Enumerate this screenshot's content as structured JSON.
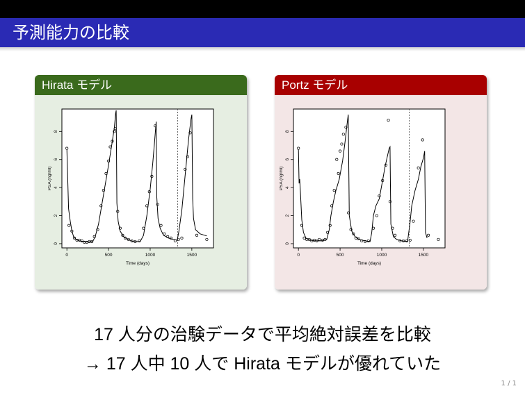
{
  "slide": {
    "title": "予測能力の比較",
    "caption_line1": "17 人分の治験データで平均絶対誤差を比較",
    "caption_line2": "→ 17 人中 10 人で Hirata モデルが優れていた",
    "page": "1 / 1"
  },
  "colors": {
    "title_bg": "#2a2ab4",
    "hirata_header": "#3a6a1c",
    "hirata_body": "#e6eee2",
    "portz_header": "#a80000",
    "portz_body": "#f3e6e6"
  },
  "blocks": [
    {
      "title": "Hirata モデル"
    },
    {
      "title": "Portz モデル"
    }
  ],
  "chart_data": [
    {
      "type": "scatter",
      "title": "",
      "xlabel": "Time (days)",
      "ylabel": "PSA (ng/ml)",
      "xlim": [
        -60,
        1760
      ],
      "ylim": [
        -0.3,
        9.6
      ],
      "x_ticks": [
        0,
        500,
        1000,
        1500
      ],
      "y_ticks": [
        0,
        2,
        4,
        6,
        8
      ],
      "vline_x": 1330,
      "points": [
        [
          0,
          6.8
        ],
        [
          25,
          1.3
        ],
        [
          60,
          0.9
        ],
        [
          90,
          0.4
        ],
        [
          120,
          0.25
        ],
        [
          150,
          0.25
        ],
        [
          180,
          0.2
        ],
        [
          210,
          0.1
        ],
        [
          240,
          0.1
        ],
        [
          270,
          0.15
        ],
        [
          300,
          0.15
        ],
        [
          330,
          0.5
        ],
        [
          370,
          1.0
        ],
        [
          410,
          2.7
        ],
        [
          440,
          3.8
        ],
        [
          470,
          5.0
        ],
        [
          500,
          5.9
        ],
        [
          520,
          6.9
        ],
        [
          545,
          7.3
        ],
        [
          570,
          8.0
        ],
        [
          580,
          8.2
        ],
        [
          610,
          2.3
        ],
        [
          640,
          1.1
        ],
        [
          670,
          0.6
        ],
        [
          700,
          0.4
        ],
        [
          740,
          0.3
        ],
        [
          780,
          0.2
        ],
        [
          820,
          0.15
        ],
        [
          870,
          0.2
        ],
        [
          920,
          1.1
        ],
        [
          960,
          2.7
        ],
        [
          990,
          3.7
        ],
        [
          1020,
          4.8
        ],
        [
          1060,
          8.4
        ],
        [
          1090,
          2.8
        ],
        [
          1130,
          1.3
        ],
        [
          1170,
          0.7
        ],
        [
          1210,
          0.5
        ],
        [
          1250,
          0.4
        ],
        [
          1300,
          0.2
        ],
        [
          1340,
          0.3
        ],
        [
          1380,
          0.4
        ],
        [
          1420,
          5.3
        ],
        [
          1450,
          6.2
        ],
        [
          1480,
          7.9
        ],
        [
          1560,
          0.6
        ],
        [
          1680,
          0.3
        ]
      ],
      "curve": [
        [
          0,
          6.7
        ],
        [
          20,
          2.5
        ],
        [
          40,
          1.6
        ],
        [
          60,
          0.9
        ],
        [
          80,
          0.5
        ],
        [
          110,
          0.3
        ],
        [
          150,
          0.2
        ],
        [
          200,
          0.15
        ],
        [
          260,
          0.12
        ],
        [
          310,
          0.15
        ],
        [
          340,
          0.5
        ],
        [
          380,
          1.4
        ],
        [
          420,
          2.8
        ],
        [
          460,
          4.2
        ],
        [
          500,
          5.6
        ],
        [
          540,
          7.1
        ],
        [
          570,
          8.3
        ],
        [
          585,
          9.3
        ],
        [
          592,
          9.5
        ],
        [
          600,
          2.9
        ],
        [
          615,
          1.6
        ],
        [
          640,
          0.9
        ],
        [
          680,
          0.5
        ],
        [
          730,
          0.3
        ],
        [
          800,
          0.15
        ],
        [
          880,
          0.15
        ],
        [
          920,
          0.6
        ],
        [
          960,
          2.0
        ],
        [
          1000,
          3.9
        ],
        [
          1030,
          5.7
        ],
        [
          1050,
          7.1
        ],
        [
          1065,
          8.2
        ],
        [
          1072,
          8.7
        ],
        [
          1080,
          3.3
        ],
        [
          1095,
          1.8
        ],
        [
          1120,
          1.1
        ],
        [
          1160,
          0.6
        ],
        [
          1220,
          0.4
        ],
        [
          1280,
          0.3
        ],
        [
          1325,
          0.25
        ],
        [
          1345,
          0.9
        ],
        [
          1380,
          2.4
        ],
        [
          1420,
          4.9
        ],
        [
          1460,
          7.4
        ],
        [
          1490,
          8.9
        ],
        [
          1500,
          9.2
        ],
        [
          1510,
          3.2
        ],
        [
          1520,
          1.8
        ],
        [
          1545,
          1.0
        ],
        [
          1600,
          0.7
        ],
        [
          1680,
          0.55
        ]
      ]
    },
    {
      "type": "scatter",
      "title": "",
      "xlabel": "Time (days)",
      "ylabel": "PSA (ng/ml)",
      "xlim": [
        -60,
        1760
      ],
      "ylim": [
        -0.3,
        9.6
      ],
      "x_ticks": [
        0,
        500,
        1000,
        1500
      ],
      "y_ticks": [
        0,
        2,
        4,
        6,
        8
      ],
      "vline_x": 1330,
      "points": [
        [
          0,
          6.8
        ],
        [
          40,
          1.3
        ],
        [
          70,
          0.4
        ],
        [
          100,
          0.3
        ],
        [
          130,
          0.3
        ],
        [
          160,
          0.2
        ],
        [
          190,
          0.25
        ],
        [
          220,
          0.2
        ],
        [
          250,
          0.3
        ],
        [
          290,
          0.25
        ],
        [
          320,
          0.3
        ],
        [
          350,
          0.8
        ],
        [
          380,
          1.3
        ],
        [
          400,
          2.7
        ],
        [
          430,
          3.8
        ],
        [
          460,
          6.0
        ],
        [
          480,
          5.0
        ],
        [
          500,
          6.6
        ],
        [
          520,
          7.1
        ],
        [
          540,
          7.8
        ],
        [
          570,
          8.3
        ],
        [
          600,
          2.2
        ],
        [
          630,
          1.0
        ],
        [
          660,
          0.7
        ],
        [
          690,
          0.4
        ],
        [
          720,
          0.35
        ],
        [
          760,
          0.2
        ],
        [
          800,
          0.15
        ],
        [
          840,
          0.2
        ],
        [
          900,
          1.1
        ],
        [
          940,
          2.0
        ],
        [
          970,
          3.4
        ],
        [
          1010,
          4.5
        ],
        [
          1050,
          5.6
        ],
        [
          1080,
          8.8
        ],
        [
          1100,
          3.0
        ],
        [
          1130,
          1.1
        ],
        [
          1160,
          0.6
        ],
        [
          1220,
          0.2
        ],
        [
          1260,
          0.2
        ],
        [
          1300,
          0.2
        ],
        [
          1340,
          0.25
        ],
        [
          1380,
          1.6
        ],
        [
          1440,
          5.4
        ],
        [
          1490,
          7.4
        ],
        [
          1560,
          0.6
        ],
        [
          1680,
          0.3
        ]
      ],
      "curve": [
        [
          0,
          6.7
        ],
        [
          8,
          4.3
        ],
        [
          15,
          4.6
        ],
        [
          25,
          3.5
        ],
        [
          40,
          1.7
        ],
        [
          60,
          0.8
        ],
        [
          90,
          0.4
        ],
        [
          140,
          0.25
        ],
        [
          200,
          0.2
        ],
        [
          280,
          0.2
        ],
        [
          340,
          0.3
        ],
        [
          370,
          1.0
        ],
        [
          390,
          2.0
        ],
        [
          420,
          3.0
        ],
        [
          450,
          3.8
        ],
        [
          490,
          4.6
        ],
        [
          530,
          5.9
        ],
        [
          560,
          7.3
        ],
        [
          585,
          8.6
        ],
        [
          598,
          9.2
        ],
        [
          610,
          2.0
        ],
        [
          640,
          0.9
        ],
        [
          680,
          0.5
        ],
        [
          730,
          0.3
        ],
        [
          800,
          0.2
        ],
        [
          860,
          0.15
        ],
        [
          880,
          0.8
        ],
        [
          900,
          2.0
        ],
        [
          930,
          2.7
        ],
        [
          970,
          3.2
        ],
        [
          1010,
          4.5
        ],
        [
          1040,
          5.5
        ],
        [
          1070,
          6.3
        ],
        [
          1090,
          6.8
        ],
        [
          1100,
          6.9
        ],
        [
          1110,
          1.4
        ],
        [
          1140,
          0.5
        ],
        [
          1180,
          0.3
        ],
        [
          1240,
          0.2
        ],
        [
          1310,
          0.15
        ],
        [
          1340,
          1.5
        ],
        [
          1360,
          2.7
        ],
        [
          1400,
          3.8
        ],
        [
          1440,
          4.6
        ],
        [
          1470,
          5.5
        ],
        [
          1500,
          6.1
        ],
        [
          1515,
          6.6
        ],
        [
          1525,
          0.8
        ],
        [
          1545,
          0.4
        ]
      ]
    }
  ]
}
